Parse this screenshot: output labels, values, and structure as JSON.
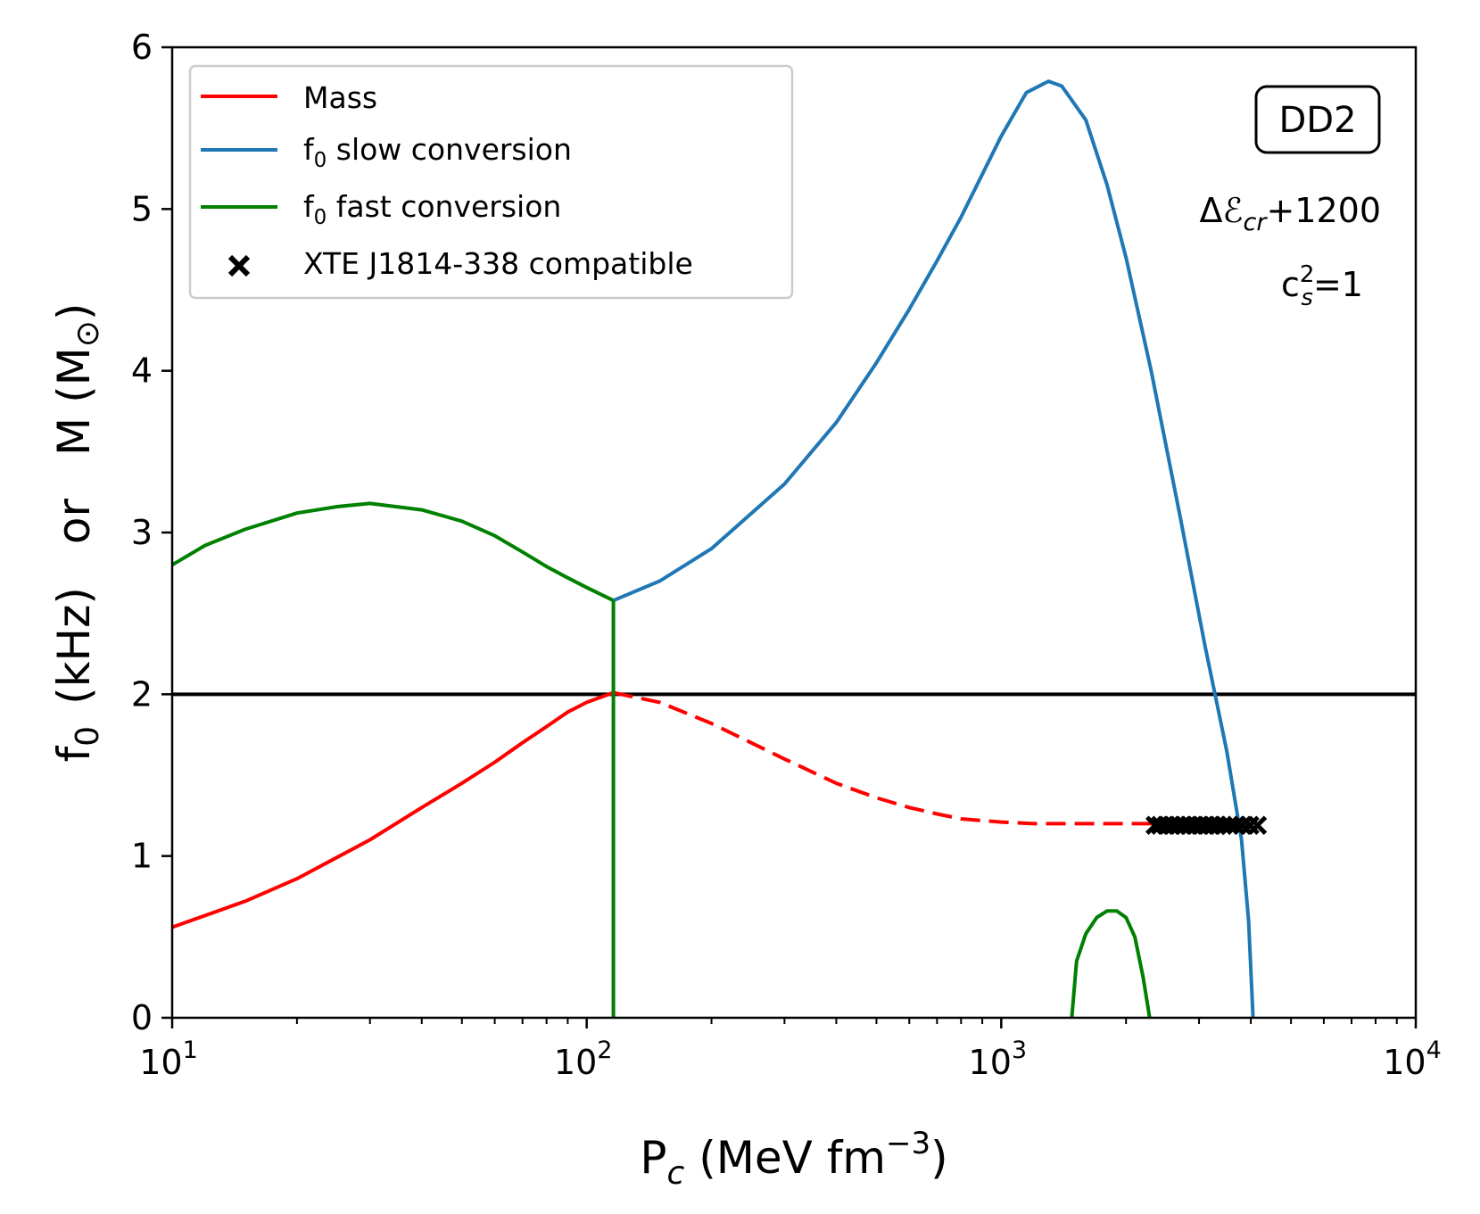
{
  "chart_data": {
    "type": "line",
    "xlabel": "P",
    "xlabel_sub": "c",
    "xlabel_units": " (MeV fm",
    "xlabel_exp": "−3",
    "xlabel_close": ")",
    "ylabel_parts": [
      "f",
      "0",
      "(kHz)",
      "or",
      "M (M",
      "⊙",
      ")"
    ],
    "xscale": "log",
    "xlim": [
      10,
      10000
    ],
    "ylim": [
      0,
      6
    ],
    "x_ticks": [
      {
        "base": "10",
        "exp": "1"
      },
      {
        "base": "10",
        "exp": "2"
      },
      {
        "base": "10",
        "exp": "3"
      },
      {
        "base": "10",
        "exp": "4"
      }
    ],
    "y_ticks": [
      "0",
      "1",
      "2",
      "3",
      "4",
      "5",
      "6"
    ],
    "hline": 2,
    "legend": {
      "position": "top-left",
      "entries": [
        {
          "label": "Mass",
          "color": "#ff0000",
          "marker": "line"
        },
        {
          "label_base": "f",
          "label_sub": "0",
          "label_rest": " slow conversion",
          "color": "#1f77b4",
          "marker": "line"
        },
        {
          "label_base": "f",
          "label_sub": "0",
          "label_rest": " fast conversion",
          "color": "#008000",
          "marker": "line"
        },
        {
          "label": "XTE J1814-338 compatible",
          "color": "#000000",
          "marker": "x"
        }
      ]
    },
    "annotations": {
      "box": "DD2",
      "delta": "Δ",
      "eps": "ℰ",
      "eps_sub": "cr",
      "eps_rest": "+1200",
      "cs_base": "c",
      "cs_sup": "2",
      "cs_sub": "s",
      "cs_rest": "=1"
    },
    "series": [
      {
        "name": "Mass",
        "color": "#ff0000",
        "style": "solid",
        "points": [
          [
            10,
            0.56
          ],
          [
            15,
            0.72
          ],
          [
            20,
            0.86
          ],
          [
            30,
            1.1
          ],
          [
            40,
            1.3
          ],
          [
            50,
            1.45
          ],
          [
            60,
            1.58
          ],
          [
            70,
            1.7
          ],
          [
            80,
            1.8
          ],
          [
            90,
            1.89
          ],
          [
            100,
            1.95
          ],
          [
            116,
            2.01
          ]
        ]
      },
      {
        "name": "Mass (unstable)",
        "color": "#ff0000",
        "style": "dashed",
        "points": [
          [
            116,
            2.01
          ],
          [
            150,
            1.95
          ],
          [
            200,
            1.82
          ],
          [
            300,
            1.6
          ],
          [
            400,
            1.45
          ],
          [
            500,
            1.36
          ],
          [
            600,
            1.3
          ],
          [
            700,
            1.26
          ],
          [
            800,
            1.23
          ],
          [
            1000,
            1.21
          ],
          [
            1200,
            1.2
          ],
          [
            1500,
            1.2
          ],
          [
            2000,
            1.2
          ],
          [
            2500,
            1.2
          ],
          [
            3000,
            1.2
          ],
          [
            3500,
            1.19
          ],
          [
            4000,
            1.19
          ]
        ]
      },
      {
        "name": "f0 slow conversion",
        "color": "#1f77b4",
        "style": "solid",
        "points": [
          [
            116,
            2.58
          ],
          [
            150,
            2.7
          ],
          [
            200,
            2.9
          ],
          [
            300,
            3.3
          ],
          [
            400,
            3.68
          ],
          [
            500,
            4.05
          ],
          [
            600,
            4.38
          ],
          [
            700,
            4.68
          ],
          [
            800,
            4.95
          ],
          [
            1000,
            5.45
          ],
          [
            1150,
            5.72
          ],
          [
            1300,
            5.79
          ],
          [
            1400,
            5.76
          ],
          [
            1600,
            5.55
          ],
          [
            1800,
            5.15
          ],
          [
            2000,
            4.7
          ],
          [
            2300,
            4.0
          ],
          [
            2700,
            3.1
          ],
          [
            3100,
            2.3
          ],
          [
            3500,
            1.65
          ],
          [
            3800,
            1.1
          ],
          [
            3950,
            0.6
          ],
          [
            4050,
            0.0
          ]
        ]
      },
      {
        "name": "f0 fast conversion",
        "color": "#008000",
        "style": "solid",
        "points": [
          [
            10,
            2.8
          ],
          [
            12,
            2.92
          ],
          [
            15,
            3.02
          ],
          [
            20,
            3.12
          ],
          [
            25,
            3.16
          ],
          [
            30,
            3.18
          ],
          [
            40,
            3.14
          ],
          [
            50,
            3.07
          ],
          [
            60,
            2.98
          ],
          [
            70,
            2.88
          ],
          [
            80,
            2.79
          ],
          [
            90,
            2.72
          ],
          [
            100,
            2.66
          ],
          [
            116,
            2.58
          ]
        ]
      },
      {
        "name": "f0 fast conversion (vertical)",
        "color": "#008000",
        "style": "solid",
        "points": [
          [
            116,
            2.58
          ],
          [
            116,
            0.0
          ]
        ]
      },
      {
        "name": "f0 fast conversion (arch)",
        "color": "#008000",
        "style": "solid",
        "points": [
          [
            1480,
            0.0
          ],
          [
            1520,
            0.35
          ],
          [
            1600,
            0.52
          ],
          [
            1700,
            0.62
          ],
          [
            1800,
            0.66
          ],
          [
            1900,
            0.66
          ],
          [
            2000,
            0.62
          ],
          [
            2100,
            0.5
          ],
          [
            2200,
            0.25
          ],
          [
            2280,
            0.0
          ]
        ]
      }
    ],
    "xte_points": [
      2350,
      2420,
      2500,
      2580,
      2660,
      2750,
      2840,
      2930,
      3020,
      3120,
      3220,
      3320,
      3430,
      3550,
      3680,
      3820,
      3980,
      4150
    ],
    "xte_value": 1.19
  }
}
